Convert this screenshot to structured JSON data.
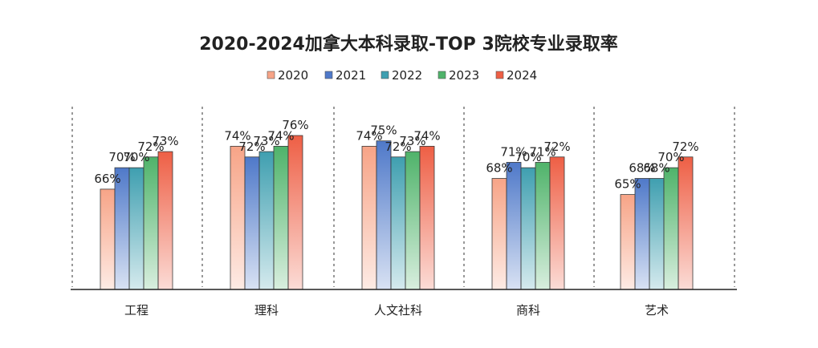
{
  "chart_data": {
    "type": "bar",
    "title": "2020-2024加拿大本科录取-TOP 3院校专业录取率",
    "xlabel": "",
    "ylabel": "",
    "categories": [
      "工程",
      "理科",
      "人文社科",
      "商科",
      "艺术"
    ],
    "series": [
      {
        "name": "2020",
        "values": [
          66,
          74,
          74,
          68,
          65
        ],
        "labels": [
          "66%",
          "74%",
          "74%",
          "68%",
          "65%"
        ],
        "color": "#f7a487"
      },
      {
        "name": "2021",
        "values": [
          70,
          72,
          75,
          71,
          68
        ],
        "labels": [
          "70%",
          "72%",
          "75%",
          "71%",
          "68%"
        ],
        "color": "#4f79c9"
      },
      {
        "name": "2022",
        "values": [
          70,
          73,
          72,
          70,
          68
        ],
        "labels": [
          "70%",
          "73%",
          "72%",
          "70%",
          "68%"
        ],
        "color": "#3f9fb0"
      },
      {
        "name": "2023",
        "values": [
          72,
          74,
          73,
          71,
          70
        ],
        "labels": [
          "72%",
          "74%",
          "73%",
          "71%",
          "70%"
        ],
        "color": "#4fb36a"
      },
      {
        "name": "2024",
        "values": [
          73,
          76,
          74,
          72,
          72
        ],
        "labels": [
          "73%",
          "76%",
          "74%",
          "72%",
          "72%"
        ],
        "color": "#ee5f45"
      }
    ],
    "grid": false,
    "legend": "top-center",
    "separators": "dashed-vertical"
  }
}
